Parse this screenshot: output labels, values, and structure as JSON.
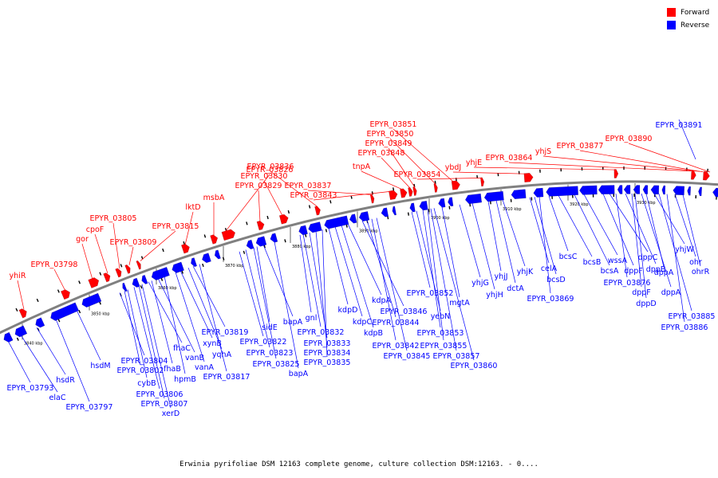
{
  "legend": {
    "forward": {
      "label": "Forward",
      "color": "#ff0000"
    },
    "reverse": {
      "label": "Reverse",
      "color": "#0000ff"
    }
  },
  "caption": "Erwinia pyrifoliae DSM 12163 complete genome, culture collection DSM:12163. - 0....",
  "backbone_color": "#808080",
  "ticks": [
    "3840 kbp",
    "3850 kbp",
    "3860 kbp",
    "3870 kbp",
    "3880 kbp",
    "3890 kbp",
    "3900 kbp",
    "3910 kbp",
    "3920 kbp",
    "3930 kbp"
  ],
  "forward_labels": [
    "yhiR",
    "EPYR_03798",
    "gor",
    "cpoF",
    "EPYR_03805",
    "EPYR_03809",
    "EPYR_03815",
    "lktD",
    "msbA",
    "EPYR_03826",
    "EPYR_03829",
    "EPYR_03830",
    "EPYR_03836",
    "EPYR_03837",
    "EPYR_03843",
    "tnpA",
    "EPYR_03848",
    "EPYR_03849",
    "EPYR_03850",
    "EPYR_03851",
    "EPYR_03854",
    "ybdJ",
    "yhjE",
    "EPYR_03864",
    "yhjS",
    "EPYR_03877",
    "EPYR_03890"
  ],
  "reverse_labels": [
    "EPYR_03793",
    "elaC",
    "hsdR",
    "EPYR_03797",
    "hsdM",
    "EPYR_03804",
    "EPYR_03802",
    "cybB",
    "EPYR_03806",
    "EPYR_03807",
    "xerD",
    "fhaC",
    "fhaB",
    "vanB",
    "hpmB",
    "vanA",
    "xynB",
    "yqhA",
    "EPYR_03819",
    "EPYR_03817",
    "EPYR_03822",
    "EPYR_03823",
    "EPYR_03825",
    "sidE",
    "bapA",
    "bapA",
    "gnl",
    "EPYR_03832",
    "EPYR_03833",
    "EPYR_03834",
    "EPYR_03835",
    "kdpD",
    "kdpC",
    "kdpB",
    "kdpA",
    "EPYR_03846",
    "EPYR_03844",
    "EPYR_03842",
    "EPYR_03845",
    "EPYR_03852",
    "yebN",
    "EPYR_03853",
    "EPYR_03855",
    "EPYR_03857",
    "EPYR_03860",
    "mgtA",
    "yhjG",
    "yhjH",
    "yhjJ",
    "dctA",
    "yhjK",
    "celA",
    "bcsD",
    "EPYR_03869",
    "bcsC",
    "bcsB",
    "bcsA",
    "wssA",
    "dppF",
    "dppC",
    "EPYR_03876",
    "dppB",
    "dppF",
    "dppD",
    "dppA",
    "dppA",
    "yhjW",
    "EPYR_03885",
    "EPYR_03886",
    "ohr",
    "ohrR",
    "EPYR_03891"
  ]
}
